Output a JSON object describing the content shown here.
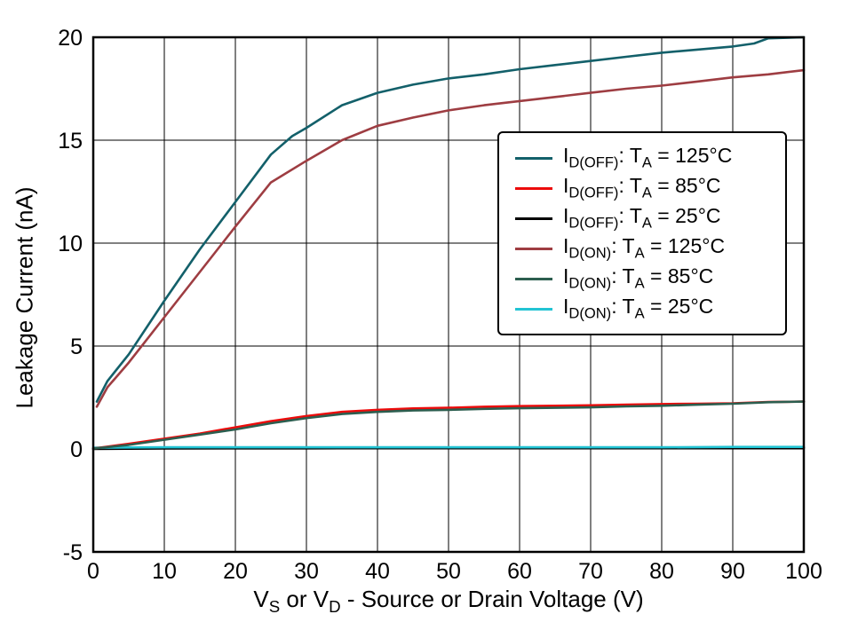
{
  "chart_data": {
    "type": "line",
    "title": "",
    "xlabel": "V_{S} or V_{D} - Source or Drain Voltage (V)",
    "ylabel": "Leakage Current (nA)",
    "xlim": [
      0,
      100
    ],
    "ylim": [
      -5,
      20
    ],
    "xticks": [
      0,
      10,
      20,
      30,
      40,
      50,
      60,
      70,
      80,
      90,
      100
    ],
    "yticks": [
      -5,
      0,
      5,
      10,
      15,
      20
    ],
    "grid": true,
    "legend_position": "inside upper right",
    "series": [
      {
        "name": "I_{D(OFF)}: T_{A} = 125°C",
        "slug": "id-off-125c",
        "color": "#13606a",
        "points": [
          [
            0.5,
            2.3
          ],
          [
            2,
            3.3
          ],
          [
            5,
            4.6
          ],
          [
            10,
            7.2
          ],
          [
            15,
            9.7
          ],
          [
            20,
            12.0
          ],
          [
            25,
            14.3
          ],
          [
            28,
            15.2
          ],
          [
            30,
            15.6
          ],
          [
            35,
            16.7
          ],
          [
            40,
            17.3
          ],
          [
            45,
            17.7
          ],
          [
            50,
            18.0
          ],
          [
            55,
            18.2
          ],
          [
            60,
            18.45
          ],
          [
            65,
            18.65
          ],
          [
            70,
            18.85
          ],
          [
            75,
            19.05
          ],
          [
            80,
            19.25
          ],
          [
            85,
            19.4
          ],
          [
            90,
            19.55
          ],
          [
            93,
            19.7
          ],
          [
            95,
            19.95
          ],
          [
            100,
            20.0
          ]
        ]
      },
      {
        "name": "I_{D(OFF)}: T_{A} = 85°C",
        "slug": "id-off-85c",
        "color": "#ec0b0b",
        "points": [
          [
            0,
            0.02
          ],
          [
            5,
            0.25
          ],
          [
            10,
            0.5
          ],
          [
            15,
            0.75
          ],
          [
            20,
            1.05
          ],
          [
            25,
            1.35
          ],
          [
            30,
            1.6
          ],
          [
            35,
            1.8
          ],
          [
            40,
            1.9
          ],
          [
            45,
            1.97
          ],
          [
            50,
            2.0
          ],
          [
            55,
            2.05
          ],
          [
            60,
            2.08
          ],
          [
            65,
            2.1
          ],
          [
            70,
            2.12
          ],
          [
            75,
            2.15
          ],
          [
            80,
            2.18
          ],
          [
            85,
            2.2
          ],
          [
            90,
            2.22
          ],
          [
            95,
            2.28
          ],
          [
            100,
            2.3
          ]
        ]
      },
      {
        "name": "I_{D(OFF)}: T_{A} = 25°C",
        "slug": "id-off-25c",
        "color": "#000000",
        "points": [
          [
            0,
            0.0
          ],
          [
            10,
            0.02
          ],
          [
            20,
            0.03
          ],
          [
            30,
            0.03
          ],
          [
            40,
            0.04
          ],
          [
            50,
            0.04
          ],
          [
            60,
            0.04
          ],
          [
            70,
            0.05
          ],
          [
            80,
            0.05
          ],
          [
            90,
            0.05
          ],
          [
            100,
            0.05
          ]
        ]
      },
      {
        "name": "I_{D(ON)}: T_{A} = 125°C",
        "slug": "id-on-125c",
        "color": "#9e3d42",
        "points": [
          [
            0.5,
            2.05
          ],
          [
            2,
            3.0
          ],
          [
            5,
            4.2
          ],
          [
            10,
            6.4
          ],
          [
            15,
            8.6
          ],
          [
            20,
            10.8
          ],
          [
            25,
            12.95
          ],
          [
            30,
            14.0
          ],
          [
            35,
            15.0
          ],
          [
            40,
            15.7
          ],
          [
            45,
            16.1
          ],
          [
            50,
            16.45
          ],
          [
            55,
            16.7
          ],
          [
            60,
            16.9
          ],
          [
            65,
            17.1
          ],
          [
            70,
            17.3
          ],
          [
            75,
            17.5
          ],
          [
            80,
            17.65
          ],
          [
            85,
            17.85
          ],
          [
            90,
            18.05
          ],
          [
            95,
            18.2
          ],
          [
            100,
            18.4
          ]
        ]
      },
      {
        "name": "I_{D(ON)}: T_{A} = 85°C",
        "slug": "id-on-85c",
        "color": "#2c5e4f",
        "points": [
          [
            0,
            0.02
          ],
          [
            5,
            0.2
          ],
          [
            10,
            0.45
          ],
          [
            15,
            0.7
          ],
          [
            20,
            0.95
          ],
          [
            25,
            1.25
          ],
          [
            30,
            1.5
          ],
          [
            35,
            1.7
          ],
          [
            40,
            1.8
          ],
          [
            45,
            1.87
          ],
          [
            50,
            1.9
          ],
          [
            55,
            1.95
          ],
          [
            60,
            1.98
          ],
          [
            65,
            2.0
          ],
          [
            70,
            2.02
          ],
          [
            75,
            2.07
          ],
          [
            80,
            2.1
          ],
          [
            85,
            2.15
          ],
          [
            90,
            2.2
          ],
          [
            95,
            2.27
          ],
          [
            100,
            2.3
          ]
        ]
      },
      {
        "name": "I_{D(ON)}: T_{A} = 25°C",
        "slug": "id-on-25c",
        "color": "#22c3d3",
        "points": [
          [
            0,
            0.06
          ],
          [
            10,
            0.08
          ],
          [
            20,
            0.08
          ],
          [
            30,
            0.08
          ],
          [
            40,
            0.08
          ],
          [
            50,
            0.08
          ],
          [
            60,
            0.08
          ],
          [
            70,
            0.08
          ],
          [
            80,
            0.08
          ],
          [
            90,
            0.1
          ],
          [
            100,
            0.1
          ]
        ]
      }
    ]
  }
}
